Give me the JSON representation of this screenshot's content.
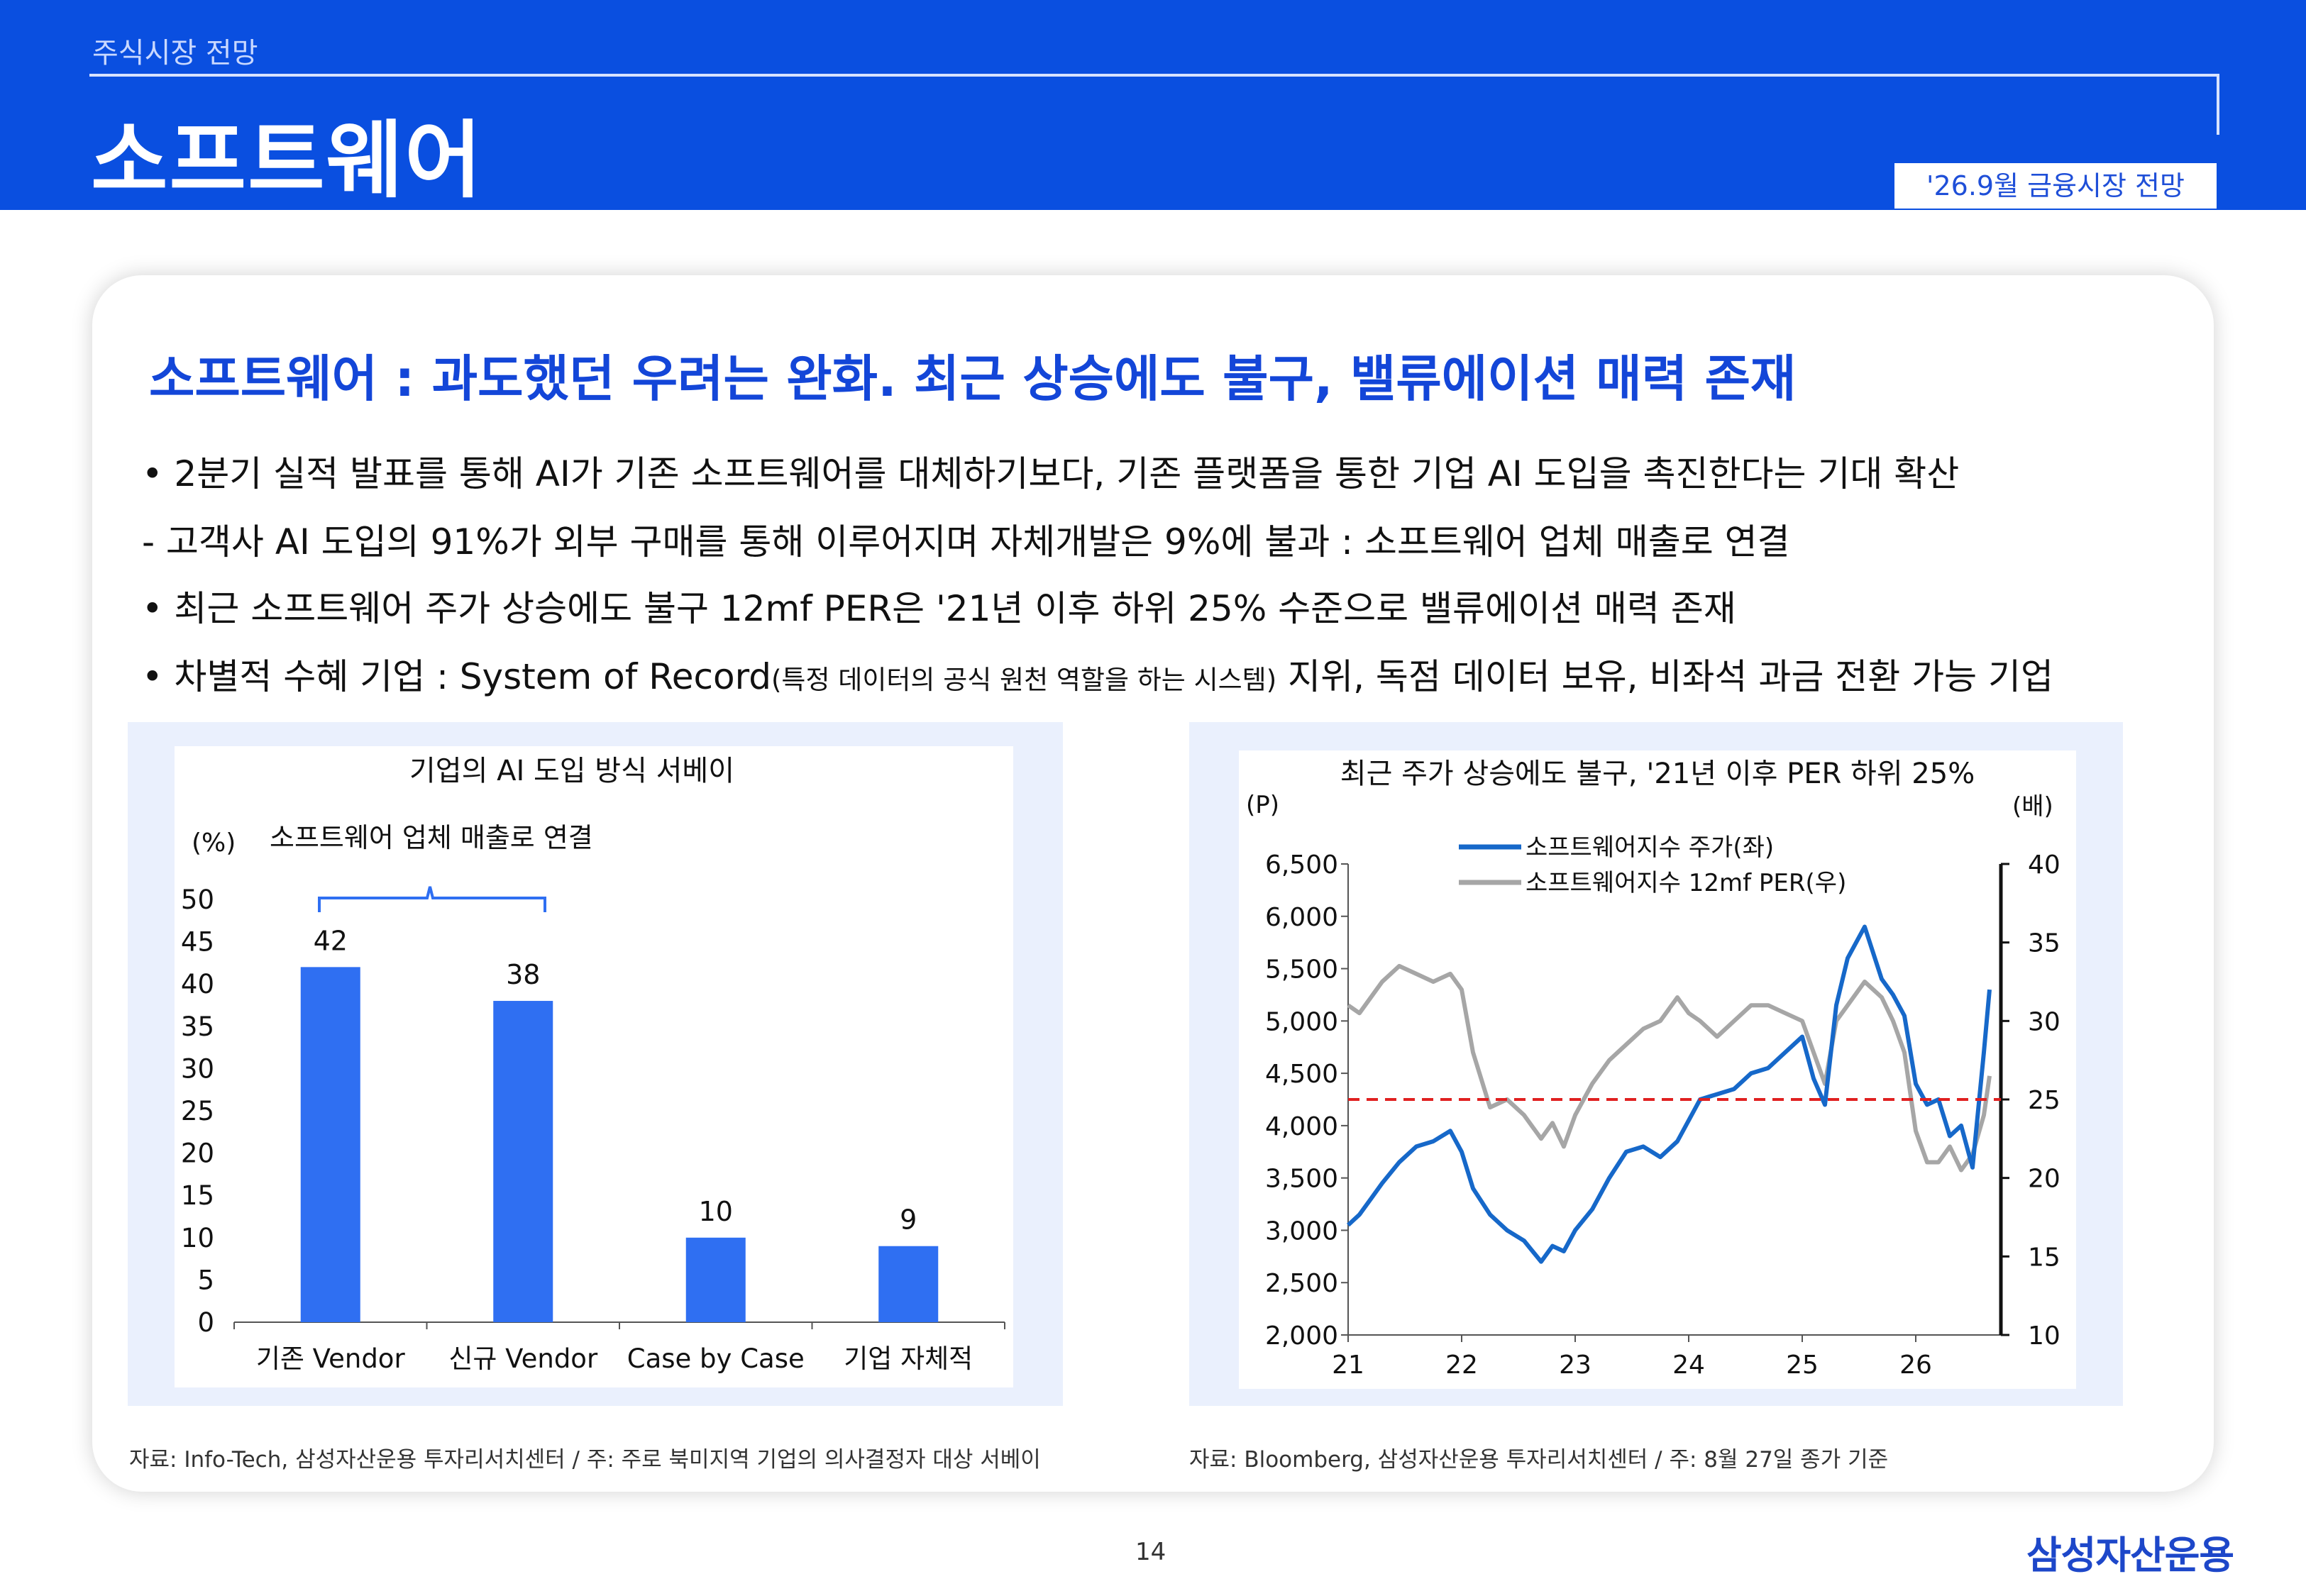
{
  "header": {
    "section": "주식시장 전망",
    "title": "소프트웨어",
    "date_badge": "'26.9월 금융시장 전망"
  },
  "headline": "소프트웨어 : 과도했던 우려는 완화. 최근 상승에도 불구, 밸류에이션 매력 존재",
  "bullets": {
    "b1": "• 2분기 실적 발표를 통해 AI가 기존 소프트웨어를 대체하기보다, 기존 플랫폼을 통한 기업 AI 도입을 촉진한다는 기대 확산",
    "b2": " - 고객사 AI 도입의 91%가 외부 구매를 통해 이루어지며 자체개발은 9%에 불과 : 소프트웨어 업체 매출로 연결",
    "b3": "• 최근 소프트웨어 주가 상승에도 불구 12mf PER은 '21년 이후 하위 25% 수준으로 밸류에이션 매력 존재",
    "b4_main": "• 차별적 수혜 기업 : System of Record",
    "b4_small": "(특정 데이터의 공식 원천 역할을 하는 시스템)",
    "b4_tail": " 지위, 독점 데이터 보유, 비좌석 과금 전환 가능 기업"
  },
  "chart_data": [
    {
      "type": "bar",
      "title": "기업의 AI 도입 방식 서베이",
      "ylabel": "(%)",
      "annotation": "소프트웨어 업체 매출로 연결",
      "categories": [
        "기존 Vendor",
        "신규 Vendor",
        "Case by Case",
        "기업 자체적"
      ],
      "values": [
        42,
        38,
        10,
        9
      ],
      "ylim": [
        0,
        50
      ],
      "yticks": [
        0,
        5,
        10,
        15,
        20,
        25,
        30,
        35,
        40,
        45,
        50
      ],
      "bar_color": "#2f6ff2",
      "grid": false
    },
    {
      "type": "line",
      "title": "최근 주가 상승에도 불구, '21년 이후 PER 하위 25%",
      "ylabel_left": "(P)",
      "ylabel_right": "(배)",
      "x_ticks": [
        "21",
        "22",
        "23",
        "24",
        "25",
        "26"
      ],
      "ylim_left": [
        2000,
        6500
      ],
      "yticks_left": [
        "2,000",
        "2,500",
        "3,000",
        "3,500",
        "4,000",
        "4,500",
        "5,000",
        "5,500",
        "6,000",
        "6,500"
      ],
      "ylim_right": [
        10,
        40
      ],
      "yticks_right": [
        "10",
        "15",
        "20",
        "25",
        "30",
        "35",
        "40"
      ],
      "series": [
        {
          "name": "소프트웨어지수 주가(좌)",
          "axis": "left",
          "color": "#1668c9",
          "x": [
            21.0,
            21.1,
            21.2,
            21.3,
            21.45,
            21.6,
            21.75,
            21.9,
            22.0,
            22.1,
            22.25,
            22.4,
            22.55,
            22.7,
            22.8,
            22.9,
            23.0,
            23.15,
            23.3,
            23.45,
            23.6,
            23.75,
            23.9,
            24.0,
            24.1,
            24.25,
            24.4,
            24.55,
            24.7,
            24.85,
            25.0,
            25.1,
            25.2,
            25.3,
            25.4,
            25.55,
            25.7,
            25.8,
            25.9,
            26.0,
            26.1,
            26.2,
            26.3,
            26.4,
            26.5,
            26.6,
            26.65
          ],
          "y": [
            3050,
            3150,
            3300,
            3450,
            3650,
            3800,
            3850,
            3950,
            3750,
            3400,
            3150,
            3000,
            2900,
            2700,
            2850,
            2800,
            3000,
            3200,
            3500,
            3750,
            3800,
            3700,
            3850,
            4050,
            4250,
            4300,
            4350,
            4500,
            4550,
            4700,
            4850,
            4450,
            4200,
            5150,
            5600,
            5900,
            5400,
            5250,
            5050,
            4400,
            4200,
            4250,
            3900,
            4000,
            3600,
            4700,
            5300
          ]
        },
        {
          "name": "소프트웨어지수 12mf PER(우)",
          "axis": "right",
          "color": "#a6a6a6",
          "x": [
            21.0,
            21.1,
            21.2,
            21.3,
            21.45,
            21.6,
            21.75,
            21.9,
            22.0,
            22.1,
            22.25,
            22.4,
            22.55,
            22.7,
            22.8,
            22.9,
            23.0,
            23.15,
            23.3,
            23.45,
            23.6,
            23.75,
            23.9,
            24.0,
            24.1,
            24.25,
            24.4,
            24.55,
            24.7,
            24.85,
            25.0,
            25.1,
            25.2,
            25.3,
            25.4,
            25.55,
            25.7,
            25.8,
            25.9,
            26.0,
            26.1,
            26.2,
            26.3,
            26.4,
            26.5,
            26.6,
            26.65
          ],
          "y": [
            31,
            30.5,
            31.5,
            32.5,
            33.5,
            33,
            32.5,
            33,
            32,
            28,
            24.5,
            25,
            24,
            22.5,
            23.5,
            22,
            24,
            26,
            27.5,
            28.5,
            29.5,
            30,
            31.5,
            30.5,
            30,
            29,
            30,
            31,
            31,
            30.5,
            30,
            28,
            26,
            30,
            31,
            32.5,
            31.5,
            30,
            28,
            23,
            21,
            21,
            22,
            20.5,
            21.5,
            24,
            26.5
          ]
        }
      ],
      "reference_line": {
        "axis": "right",
        "value": 25,
        "color": "#e02020",
        "style": "dashed"
      }
    }
  ],
  "sources": {
    "left": "자료: Info-Tech, 삼성자산운용 투자리서치센터 / 주: 주로 북미지역 기업의 의사결정자 대상 서베이",
    "right": "자료: Bloomberg, 삼성자산운용 투자리서치센터 / 주: 8월 27일 종가 기준"
  },
  "footer": {
    "page": "14",
    "logo": "삼성자산운용"
  }
}
